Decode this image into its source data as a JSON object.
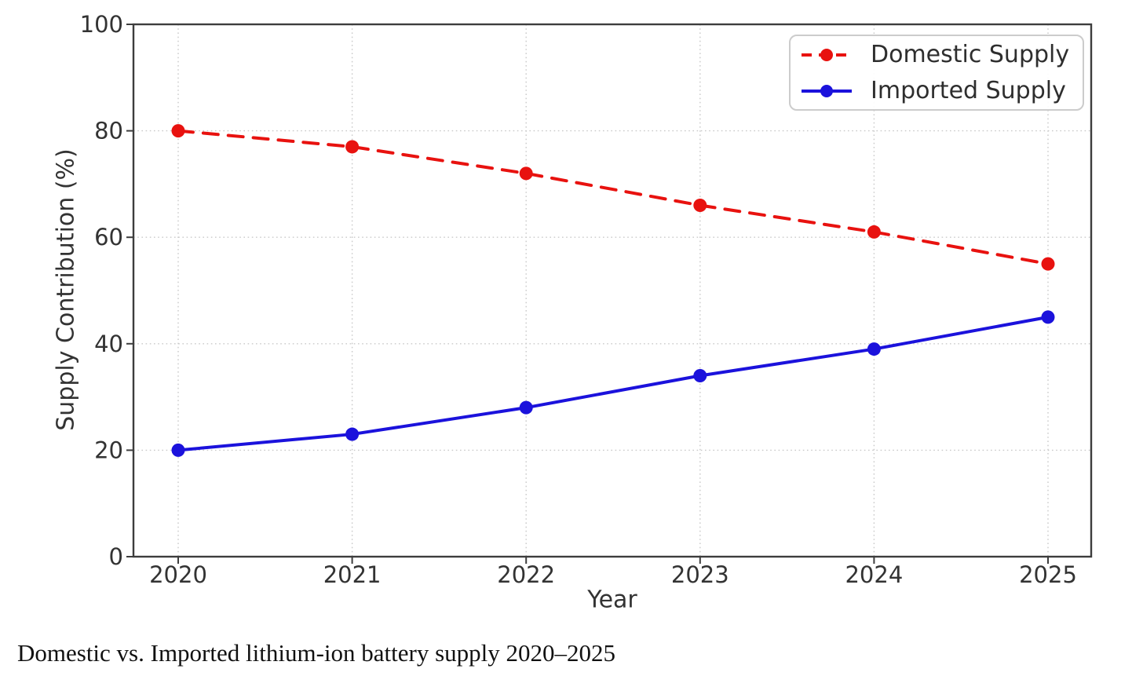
{
  "chart_data": {
    "type": "line",
    "x": [
      2020,
      2021,
      2022,
      2023,
      2024,
      2025
    ],
    "series": [
      {
        "name": "Domestic Supply",
        "values": [
          80,
          77,
          72,
          66,
          61,
          55
        ],
        "color": "#e8120f",
        "style": "dashed"
      },
      {
        "name": "Imported Supply",
        "values": [
          20,
          23,
          28,
          34,
          39,
          45
        ],
        "color": "#1b12dc",
        "style": "solid"
      }
    ],
    "xlabel": "Year",
    "ylabel": "Supply Contribution (%)",
    "ylim": [
      0,
      100
    ],
    "yticks": [
      0,
      20,
      40,
      60,
      80,
      100
    ],
    "grid": true,
    "grid_style": "dotted",
    "legend_position": "top-right"
  },
  "caption": "Domestic vs. Imported lithium-ion battery supply 2020–2025",
  "colors": {
    "spine": "#3d3d3d",
    "grid": "#c9c9c9",
    "tick_text": "#333333",
    "legend_border": "#cccccc"
  }
}
